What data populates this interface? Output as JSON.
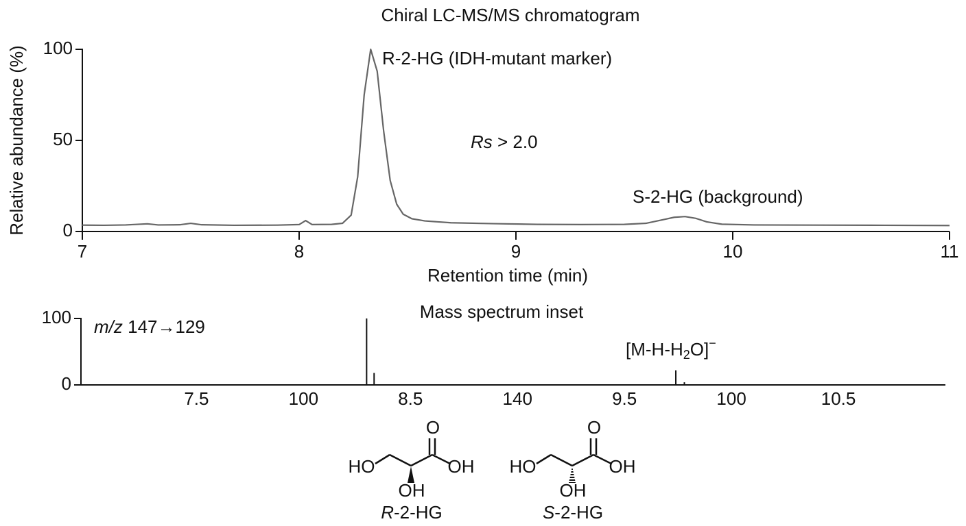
{
  "chart_data": [
    {
      "type": "line",
      "title": "Chiral LC-MS/MS chromatogram",
      "x_label": "Retention time (min)",
      "y_label": "Relative abundance (%)",
      "x": [
        7.0,
        7.1,
        7.2,
        7.3,
        7.35,
        7.45,
        7.5,
        7.55,
        7.7,
        7.9,
        8.0,
        8.03,
        8.06,
        8.15,
        8.2,
        8.24,
        8.27,
        8.3,
        8.33,
        8.36,
        8.39,
        8.42,
        8.45,
        8.48,
        8.52,
        8.58,
        8.7,
        8.9,
        9.1,
        9.3,
        9.5,
        9.6,
        9.68,
        9.73,
        9.78,
        9.83,
        9.88,
        9.95,
        10.1,
        10.4,
        10.7,
        11.0
      ],
      "values": [
        3.5,
        3.4,
        3.6,
        4.2,
        3.6,
        3.7,
        4.5,
        3.7,
        3.4,
        3.5,
        3.8,
        6,
        3.8,
        3.9,
        4.5,
        9,
        30,
        75,
        100,
        88,
        55,
        28,
        15,
        9.5,
        7,
        5.8,
        4.8,
        4.3,
        3.9,
        3.8,
        3.9,
        4.5,
        6.5,
        7.8,
        8.2,
        7.2,
        5.3,
        4,
        3.6,
        3.5,
        3.4,
        3.3
      ],
      "color": "#666666",
      "xlim": [
        7,
        11
      ],
      "xticks": [
        7,
        8,
        9,
        10,
        11
      ],
      "ylim": [
        0,
        100
      ],
      "yticks": [
        0,
        50,
        100
      ],
      "annotations": [
        {
          "text": "R-2-HG (IDH-mutant marker)"
        },
        {
          "italic": "Rs",
          "text": " > 2.0"
        },
        {
          "text": "S-2-HG (background)"
        }
      ]
    },
    {
      "type": "stem",
      "title": "Mass spectrum inset",
      "x": [
        8.295,
        8.33,
        9.74,
        9.78
      ],
      "values": [
        100,
        18,
        22,
        4
      ],
      "color": "#111111",
      "xlim": [
        6.96,
        11
      ],
      "xticks": [
        7.5,
        {
          "value": 8,
          "label": "100"
        },
        8.5,
        {
          "value": 9,
          "label": "140"
        },
        9.5,
        {
          "value": 10,
          "label": "100"
        },
        10.5
      ],
      "ylim": [
        0,
        100
      ],
      "yticks": [
        0,
        100
      ],
      "annotations": [
        {
          "italic": "m/z",
          "text": " 147→129"
        },
        {
          "parts": [
            "[M-H-H",
            "2",
            "O]",
            "−"
          ]
        }
      ]
    }
  ],
  "structures": [
    {
      "atoms": [
        "HO",
        "O",
        "OH",
        "OH"
      ],
      "caption_italic": "R",
      "caption": "-2-HG"
    },
    {
      "atoms": [
        "HO",
        "O",
        "OH",
        "OH"
      ],
      "caption_italic": "S",
      "caption": "-2-HG"
    }
  ]
}
